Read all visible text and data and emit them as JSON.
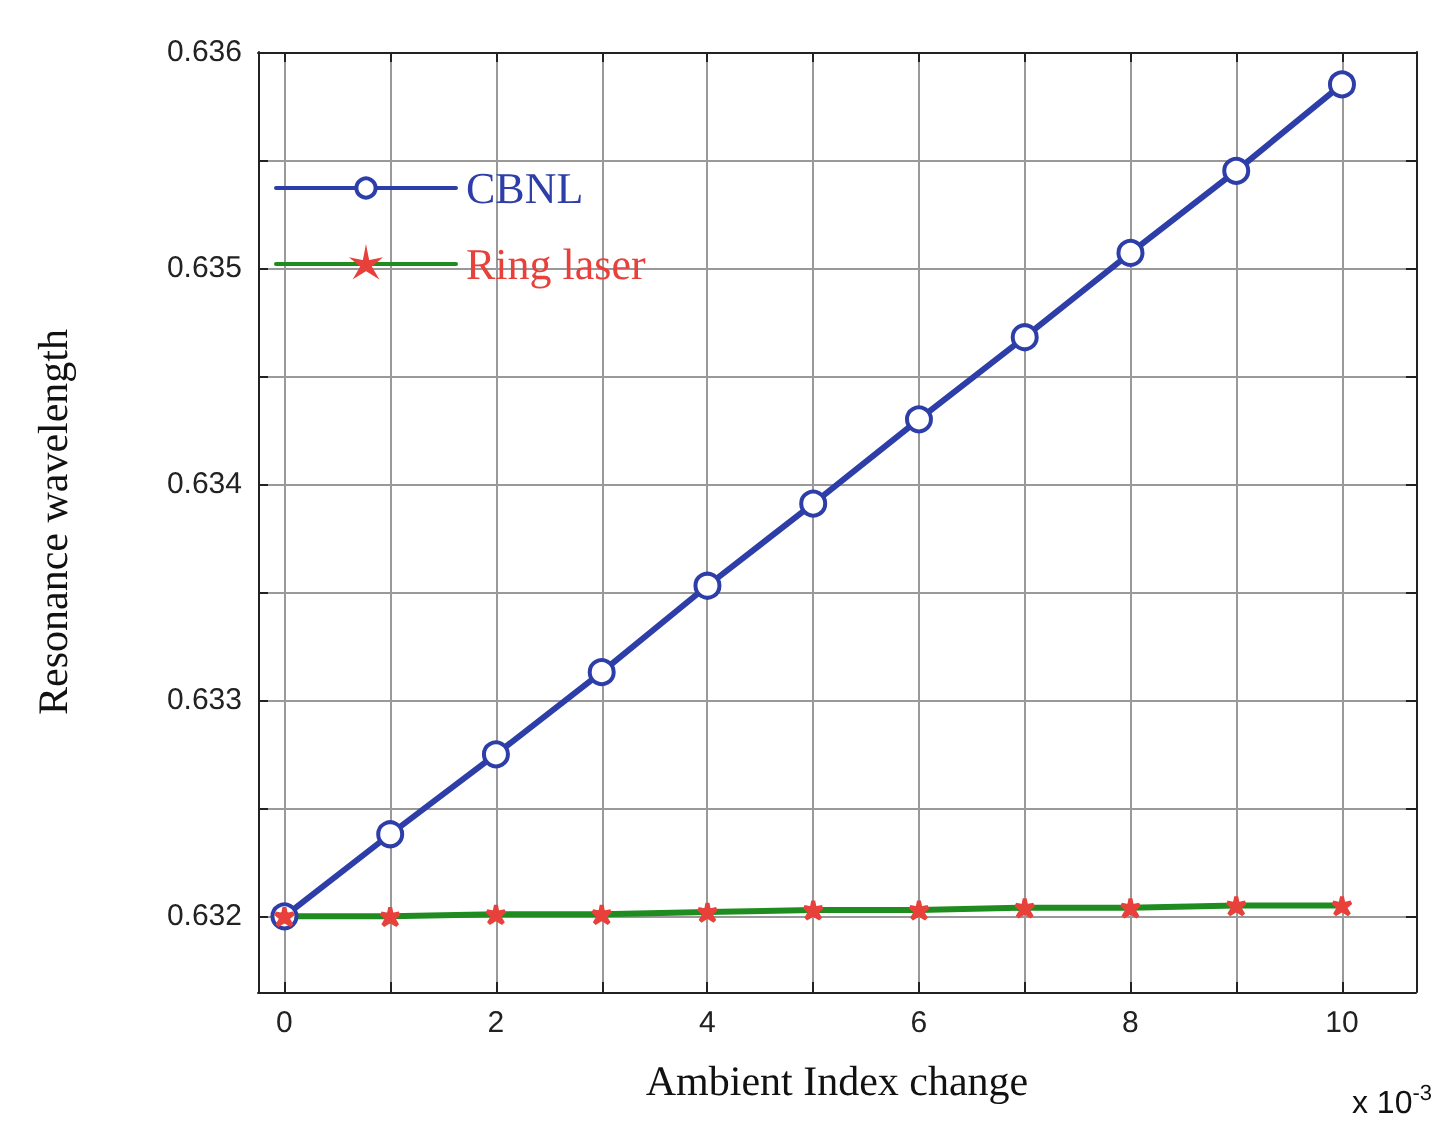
{
  "chart_data": {
    "type": "line",
    "xlabel": "Ambient Index change",
    "ylabel": "Resonance wavelength",
    "x": [
      0,
      1,
      2,
      3,
      4,
      5,
      6,
      7,
      8,
      9,
      10
    ],
    "series": [
      {
        "name": "CBNL",
        "color": "#2e3ea8",
        "marker": "circle",
        "values": [
          0.632,
          0.63238,
          0.63275,
          0.63313,
          0.63353,
          0.63391,
          0.6343,
          0.63468,
          0.63507,
          0.63545,
          0.63585
        ]
      },
      {
        "name": "Ring laser",
        "color": "#1e8c1e",
        "marker": "star",
        "colors": [
          "#e8403a",
          "#e8403a",
          "#e8403a",
          "#e8403a",
          "#e8403a",
          "#e8403a",
          "#e8403a",
          "#e8403a",
          "#e8403a",
          "#e8403a",
          "#e8403a"
        ],
        "values": [
          0.632,
          0.632,
          0.63201,
          0.63201,
          0.63202,
          0.63203,
          0.63203,
          0.63204,
          0.63204,
          0.63205,
          0.63205
        ]
      }
    ],
    "xlim": [
      -0.25,
      10.7
    ],
    "xticks": [
      0,
      {
        "value": 1,
        "label": null
      },
      2,
      {
        "value": 3,
        "label": null
      },
      4,
      {
        "value": 5,
        "label": null
      },
      6,
      {
        "value": 7,
        "label": null
      },
      8,
      {
        "value": 9,
        "label": null
      },
      10
    ],
    "ylim": [
      0.63165,
      0.636
    ],
    "yticks": [
      0.632,
      {
        "value": 0.6325,
        "label": null
      },
      0.633,
      {
        "value": 0.6335,
        "label": null
      },
      0.634,
      {
        "value": 0.6345,
        "label": null
      },
      0.635,
      {
        "value": 0.6355,
        "label": null
      },
      0.636
    ],
    "annotations": [
      "x 10$^{-3}$"
    ],
    "grid": true,
    "legend": "top left",
    "line_style": "solid"
  }
}
